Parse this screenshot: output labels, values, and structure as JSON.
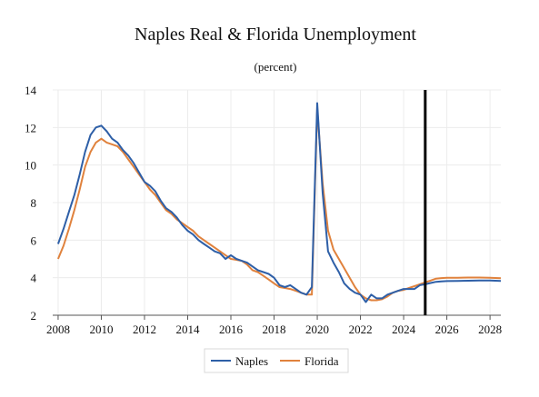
{
  "chart_data": {
    "type": "line",
    "title": "Naples Real & Florida Unemployment",
    "subtitle": "(percent)",
    "xlabel": "",
    "ylabel": "",
    "xlim": [
      2007.75,
      2028.5
    ],
    "ylim": [
      2,
      14
    ],
    "x_ticks": [
      "2008",
      "2010",
      "2012",
      "2014",
      "2016",
      "2018",
      "2020",
      "2022",
      "2024",
      "2026",
      "2028"
    ],
    "y_ticks": [
      "2",
      "4",
      "6",
      "8",
      "10",
      "12",
      "14"
    ],
    "grid": true,
    "legend_position": "bottom-center",
    "vertical_marker_x": 2025.0,
    "series": [
      {
        "name": "Naples",
        "color": "#2e5fa7",
        "points": [
          [
            2008.0,
            5.8
          ],
          [
            2008.25,
            6.6
          ],
          [
            2008.5,
            7.5
          ],
          [
            2008.75,
            8.4
          ],
          [
            2009.0,
            9.5
          ],
          [
            2009.25,
            10.7
          ],
          [
            2009.5,
            11.6
          ],
          [
            2009.75,
            12.0
          ],
          [
            2010.0,
            12.1
          ],
          [
            2010.25,
            11.8
          ],
          [
            2010.5,
            11.4
          ],
          [
            2010.75,
            11.2
          ],
          [
            2011.0,
            10.8
          ],
          [
            2011.25,
            10.5
          ],
          [
            2011.5,
            10.1
          ],
          [
            2011.75,
            9.6
          ],
          [
            2012.0,
            9.1
          ],
          [
            2012.25,
            8.9
          ],
          [
            2012.5,
            8.6
          ],
          [
            2012.75,
            8.1
          ],
          [
            2013.0,
            7.7
          ],
          [
            2013.25,
            7.5
          ],
          [
            2013.5,
            7.2
          ],
          [
            2013.75,
            6.8
          ],
          [
            2014.0,
            6.5
          ],
          [
            2014.25,
            6.3
          ],
          [
            2014.5,
            6.0
          ],
          [
            2014.75,
            5.8
          ],
          [
            2015.0,
            5.6
          ],
          [
            2015.25,
            5.4
          ],
          [
            2015.5,
            5.3
          ],
          [
            2015.75,
            5.0
          ],
          [
            2016.0,
            5.2
          ],
          [
            2016.25,
            5.0
          ],
          [
            2016.5,
            4.9
          ],
          [
            2016.75,
            4.8
          ],
          [
            2017.0,
            4.6
          ],
          [
            2017.25,
            4.4
          ],
          [
            2017.5,
            4.3
          ],
          [
            2017.75,
            4.2
          ],
          [
            2018.0,
            4.0
          ],
          [
            2018.25,
            3.6
          ],
          [
            2018.5,
            3.5
          ],
          [
            2018.75,
            3.6
          ],
          [
            2019.0,
            3.4
          ],
          [
            2019.25,
            3.2
          ],
          [
            2019.5,
            3.1
          ],
          [
            2019.75,
            3.5
          ],
          [
            2020.0,
            13.3
          ],
          [
            2020.25,
            8.5
          ],
          [
            2020.5,
            5.4
          ],
          [
            2020.75,
            4.8
          ],
          [
            2021.0,
            4.3
          ],
          [
            2021.25,
            3.7
          ],
          [
            2021.5,
            3.4
          ],
          [
            2021.75,
            3.2
          ],
          [
            2022.0,
            3.1
          ],
          [
            2022.25,
            2.7
          ],
          [
            2022.5,
            3.1
          ],
          [
            2022.75,
            2.9
          ],
          [
            2023.0,
            2.9
          ],
          [
            2023.25,
            3.1
          ],
          [
            2023.5,
            3.2
          ],
          [
            2023.75,
            3.3
          ],
          [
            2024.0,
            3.4
          ],
          [
            2024.25,
            3.4
          ],
          [
            2024.5,
            3.4
          ],
          [
            2024.75,
            3.6
          ],
          [
            2025.0,
            3.65
          ],
          [
            2025.25,
            3.72
          ],
          [
            2025.5,
            3.78
          ],
          [
            2025.75,
            3.8
          ],
          [
            2026.0,
            3.82
          ],
          [
            2026.5,
            3.83
          ],
          [
            2027.0,
            3.84
          ],
          [
            2027.5,
            3.85
          ],
          [
            2028.0,
            3.85
          ],
          [
            2028.5,
            3.83
          ]
        ]
      },
      {
        "name": "Florida",
        "color": "#e0823d",
        "points": [
          [
            2008.0,
            5.0
          ],
          [
            2008.25,
            5.7
          ],
          [
            2008.5,
            6.6
          ],
          [
            2008.75,
            7.6
          ],
          [
            2009.0,
            8.7
          ],
          [
            2009.25,
            9.9
          ],
          [
            2009.5,
            10.7
          ],
          [
            2009.75,
            11.2
          ],
          [
            2010.0,
            11.4
          ],
          [
            2010.25,
            11.2
          ],
          [
            2010.5,
            11.1
          ],
          [
            2010.75,
            11.0
          ],
          [
            2011.0,
            10.7
          ],
          [
            2011.25,
            10.3
          ],
          [
            2011.5,
            9.9
          ],
          [
            2011.75,
            9.5
          ],
          [
            2012.0,
            9.1
          ],
          [
            2012.25,
            8.7
          ],
          [
            2012.5,
            8.4
          ],
          [
            2012.75,
            8.0
          ],
          [
            2013.0,
            7.6
          ],
          [
            2013.25,
            7.4
          ],
          [
            2013.5,
            7.1
          ],
          [
            2013.75,
            6.9
          ],
          [
            2014.0,
            6.7
          ],
          [
            2014.25,
            6.5
          ],
          [
            2014.5,
            6.2
          ],
          [
            2014.75,
            6.0
          ],
          [
            2015.0,
            5.8
          ],
          [
            2015.25,
            5.6
          ],
          [
            2015.5,
            5.4
          ],
          [
            2015.75,
            5.2
          ],
          [
            2016.0,
            5.0
          ],
          [
            2016.25,
            4.95
          ],
          [
            2016.5,
            4.9
          ],
          [
            2016.75,
            4.7
          ],
          [
            2017.0,
            4.4
          ],
          [
            2017.25,
            4.3
          ],
          [
            2017.5,
            4.1
          ],
          [
            2017.75,
            3.9
          ],
          [
            2018.0,
            3.7
          ],
          [
            2018.25,
            3.5
          ],
          [
            2018.5,
            3.45
          ],
          [
            2018.75,
            3.4
          ],
          [
            2019.0,
            3.3
          ],
          [
            2019.25,
            3.2
          ],
          [
            2019.5,
            3.1
          ],
          [
            2019.75,
            3.1
          ],
          [
            2020.0,
            13.0
          ],
          [
            2020.25,
            9.0
          ],
          [
            2020.5,
            6.5
          ],
          [
            2020.75,
            5.5
          ],
          [
            2021.0,
            5.0
          ],
          [
            2021.25,
            4.5
          ],
          [
            2021.5,
            4.0
          ],
          [
            2021.75,
            3.5
          ],
          [
            2022.0,
            3.1
          ],
          [
            2022.25,
            2.9
          ],
          [
            2022.5,
            2.8
          ],
          [
            2022.75,
            2.8
          ],
          [
            2023.0,
            2.85
          ],
          [
            2023.25,
            3.0
          ],
          [
            2023.5,
            3.2
          ],
          [
            2023.75,
            3.3
          ],
          [
            2024.0,
            3.35
          ],
          [
            2024.25,
            3.45
          ],
          [
            2024.5,
            3.55
          ],
          [
            2024.75,
            3.65
          ],
          [
            2025.0,
            3.75
          ],
          [
            2025.25,
            3.85
          ],
          [
            2025.5,
            3.95
          ],
          [
            2025.75,
            3.98
          ],
          [
            2026.0,
            4.0
          ],
          [
            2026.5,
            4.0
          ],
          [
            2027.0,
            4.01
          ],
          [
            2027.5,
            4.01
          ],
          [
            2028.0,
            4.0
          ],
          [
            2028.5,
            3.97
          ]
        ]
      }
    ]
  }
}
